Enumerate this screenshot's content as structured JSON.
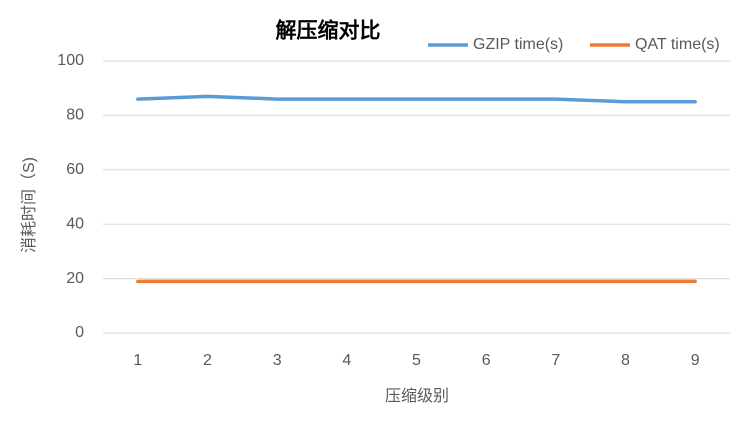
{
  "chart_data": {
    "type": "line",
    "title": "解压缩对比",
    "x_label": "压缩级别",
    "y_label": "消耗时间（S)",
    "categories": [
      1,
      2,
      3,
      4,
      5,
      6,
      7,
      8,
      9
    ],
    "series": [
      {
        "name": "GZIP time(s)",
        "color": "#5b9bd5",
        "values": [
          86,
          87,
          86,
          86,
          86,
          86,
          86,
          85,
          85
        ]
      },
      {
        "name": "QAT time(s)",
        "color": "#ed7d31",
        "values": [
          19,
          19,
          19,
          19,
          19,
          19,
          19,
          19,
          19
        ]
      }
    ],
    "ylim": [
      0,
      100
    ],
    "yticks": [
      0,
      20,
      40,
      60,
      80,
      100
    ],
    "grid": true,
    "legend": "top-right"
  }
}
